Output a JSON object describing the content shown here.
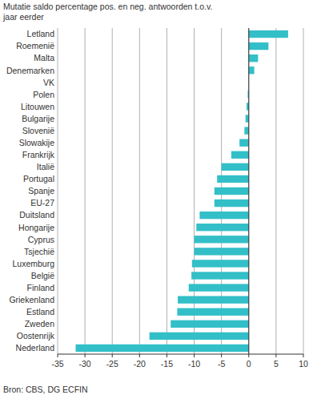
{
  "chart_data": {
    "type": "bar",
    "orientation": "horizontal",
    "title": "Mutatie saldo percentage pos. en neg. antwoorden t.o.v. jaar eerder",
    "source": "Bron: CBS, DG ECFIN",
    "categories": [
      "Letland",
      "Roemenië",
      "Malta",
      "Denemarken",
      "VK",
      "Polen",
      "Litouwen",
      "Bulgarije",
      "Slovenië",
      "Slowakije",
      "Frankrijk",
      "Italië",
      "Portugal",
      "Spanje",
      "EU-27",
      "Duitsland",
      "Hongarije",
      "Cyprus",
      "Tsjechië",
      "Luxemburg",
      "België",
      "Finland",
      "Griekenland",
      "Estland",
      "Zweden",
      "Oostenrijk",
      "Nederland"
    ],
    "values": [
      7.2,
      3.6,
      1.7,
      1.0,
      0,
      -0.2,
      -0.4,
      -0.6,
      -0.8,
      -1.7,
      -3.2,
      -5.0,
      -5.8,
      -6.3,
      -6.3,
      -9.0,
      -9.6,
      -10.0,
      -10.0,
      -10.4,
      -10.5,
      -11.0,
      -13.0,
      -13.1,
      -14.3,
      -18.2,
      -31.7
    ],
    "color": "#33bfc8",
    "xlim": [
      -35,
      10
    ],
    "xticks": [
      -35,
      -30,
      -25,
      -20,
      -15,
      -10,
      -5,
      0,
      5,
      10
    ],
    "grid": true
  }
}
